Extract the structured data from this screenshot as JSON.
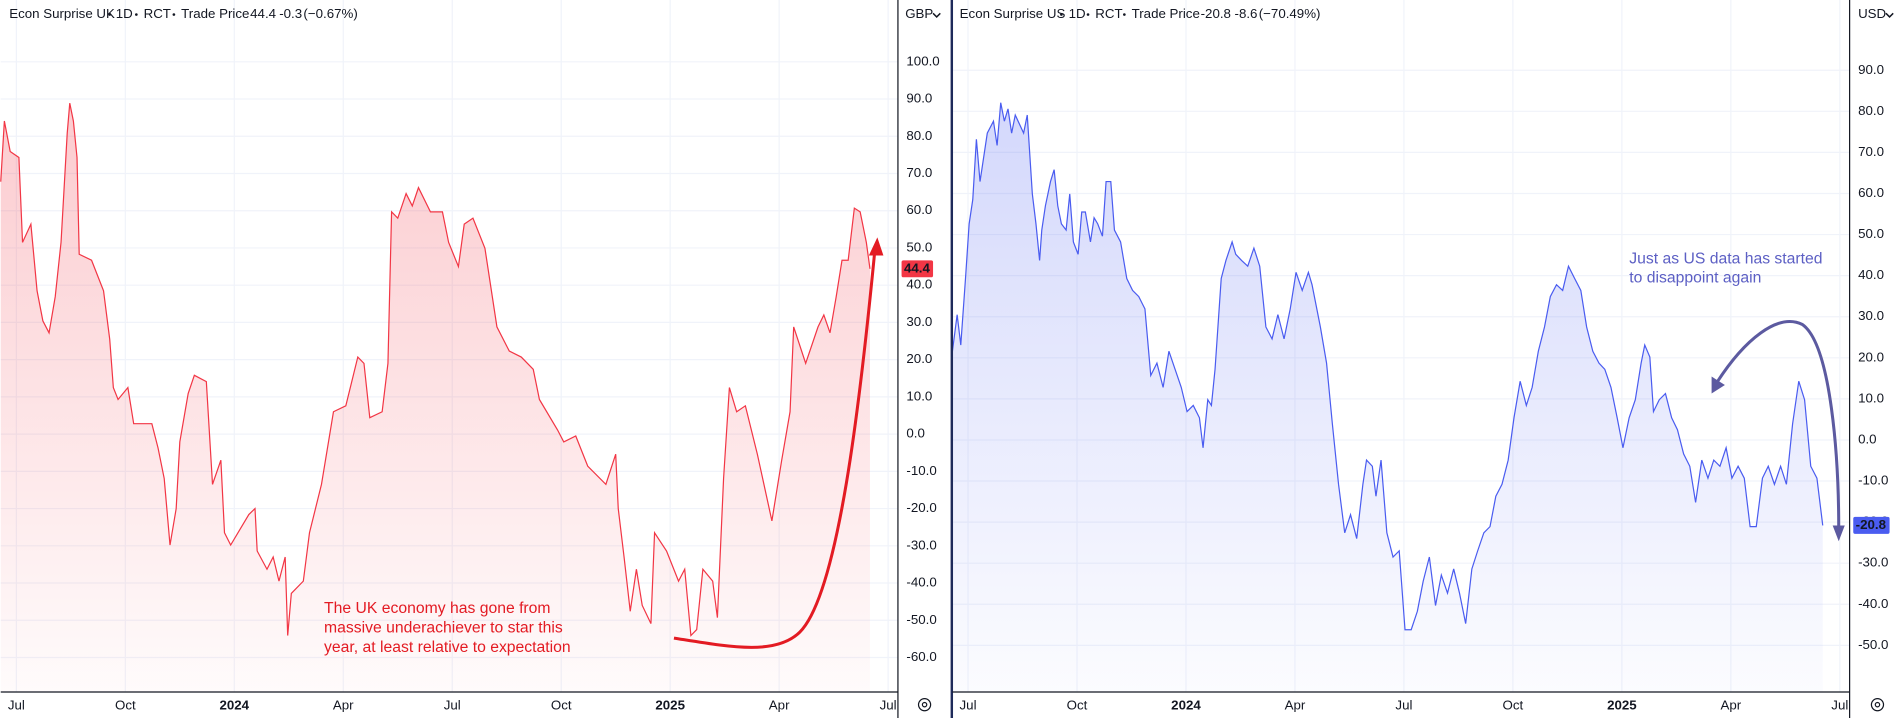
{
  "chart_data": [
    {
      "type": "area",
      "title": "Econ Surprise UK",
      "interval": "1D",
      "source": "RCT",
      "field": "Trade Price",
      "last": 44.4,
      "change": -0.3,
      "change_pct": {
        "value": -0.67,
        "label": "(−0.67%)"
      },
      "currency": "GBP",
      "color": "#f23645",
      "grid": true,
      "xlim": [
        -0.43,
        24.27
      ],
      "ylim": [
        -69.1,
        116.6
      ],
      "xticks": [
        {
          "value": 0,
          "label": "Jul"
        },
        {
          "value": 3,
          "label": "Oct"
        },
        {
          "value": 6,
          "label": "2024"
        },
        {
          "value": 9,
          "label": "Apr"
        },
        {
          "value": 12,
          "label": "Jul"
        },
        {
          "value": 15,
          "label": "Oct"
        },
        {
          "value": 18,
          "label": "2025"
        },
        {
          "value": 21,
          "label": "Apr"
        },
        {
          "value": 24,
          "label": "Jul"
        }
      ],
      "yticks": [
        {
          "value": 100,
          "label": "100.0"
        },
        {
          "value": 90,
          "label": "90.0"
        },
        {
          "value": 80,
          "label": "80.0"
        },
        {
          "value": 70,
          "label": "70.0"
        },
        {
          "value": 60,
          "label": "60.0"
        },
        {
          "value": 50,
          "label": "50.0"
        },
        {
          "value": 40,
          "label": "40.0"
        },
        {
          "value": 30,
          "label": "30.0"
        },
        {
          "value": 20,
          "label": "20.0"
        },
        {
          "value": 10,
          "label": "10.0"
        },
        {
          "value": 0,
          "label": "0.0"
        },
        {
          "value": -10,
          "label": "-10.0"
        },
        {
          "value": -20,
          "label": "-20.0"
        },
        {
          "value": -30,
          "label": "-30.0"
        },
        {
          "value": -40,
          "label": "-40.0"
        },
        {
          "value": -50,
          "label": "-50.0"
        },
        {
          "value": -60,
          "label": "-60.0"
        }
      ],
      "annotation": [
        "The UK economy has gone from",
        "massive underachiever to star this",
        "year, at least relative to expectation"
      ],
      "x": [
        -0.43,
        -0.33,
        -0.17,
        0.07,
        0.17,
        0.4,
        0.57,
        0.73,
        0.9,
        1.07,
        1.23,
        1.4,
        1.47,
        1.57,
        1.67,
        1.73,
        2.07,
        2.4,
        2.57,
        2.67,
        2.8,
        3.07,
        3.23,
        3.73,
        3.9,
        4.07,
        4.23,
        4.4,
        4.5,
        4.73,
        4.9,
        5.23,
        5.4,
        5.63,
        5.73,
        5.9,
        6.4,
        6.57,
        6.63,
        6.9,
        7.07,
        7.23,
        7.4,
        7.47,
        7.57,
        7.9,
        8.07,
        8.4,
        8.73,
        9.07,
        9.4,
        9.57,
        9.73,
        10.07,
        10.23,
        10.33,
        10.5,
        10.73,
        10.9,
        11.07,
        11.4,
        11.73,
        11.9,
        12.17,
        12.33,
        12.57,
        12.9,
        13.23,
        13.57,
        13.9,
        14.23,
        14.4,
        14.9,
        15.07,
        15.4,
        15.73,
        16.23,
        16.5,
        16.57,
        16.73,
        16.9,
        17.07,
        17.23,
        17.47,
        17.57,
        17.9,
        18.23,
        18.4,
        18.57,
        18.73,
        18.9,
        19.17,
        19.3,
        19.47,
        19.63,
        19.83,
        20.07,
        20.4,
        20.8,
        21.07,
        21.3,
        21.4,
        21.73,
        22.07,
        22.23,
        22.4,
        22.57,
        22.73,
        22.9,
        23.07,
        23.23,
        23.4,
        23.5
      ],
      "values": [
        67.8,
        84.1,
        75.9,
        74.3,
        51.5,
        56.4,
        38.5,
        30.4,
        27.2,
        36.9,
        51.5,
        80.8,
        88.9,
        84.1,
        74.3,
        48.3,
        46.7,
        38.5,
        25.5,
        12.5,
        9.3,
        12.5,
        2.8,
        2.8,
        -3.7,
        -11.9,
        -29.8,
        -20.0,
        -2.1,
        10.9,
        15.8,
        14.1,
        -13.5,
        -7.0,
        -26.5,
        -29.8,
        -21.6,
        -20.0,
        -31.4,
        -36.3,
        -33.0,
        -39.5,
        -33.0,
        -54.1,
        -42.8,
        -39.5,
        -26.5,
        -13.5,
        6.0,
        7.6,
        20.7,
        19.0,
        4.4,
        6.0,
        19.0,
        59.7,
        58.0,
        64.6,
        61.3,
        66.2,
        59.7,
        59.7,
        51.5,
        45.0,
        56.4,
        58.0,
        49.9,
        28.8,
        22.3,
        20.7,
        17.4,
        9.3,
        1.1,
        -2.1,
        -0.5,
        -8.6,
        -13.5,
        -5.4,
        -20.0,
        -33.0,
        -47.6,
        -36.3,
        -46.0,
        -50.9,
        -26.5,
        -31.4,
        -39.5,
        -36.3,
        -54.1,
        -52.5,
        -36.3,
        -39.5,
        -49.3,
        -11.9,
        12.5,
        6.0,
        7.6,
        -5.4,
        -23.3,
        -7.0,
        6.0,
        28.8,
        19.0,
        28.8,
        32.0,
        27.2,
        36.9,
        46.7,
        46.7,
        60.7,
        59.7,
        51.5,
        44.4
      ]
    },
    {
      "type": "area",
      "title": "Econ Surprise US",
      "interval": "1D",
      "source": "RCT",
      "field": "Trade Price",
      "last": -20.8,
      "change": -8.6,
      "change_pct": {
        "value": -70.49,
        "label": "(−70.49%)"
      },
      "currency": "USD",
      "color": "#4a5cf0",
      "grid": true,
      "xlim": [
        -0.43,
        24.27
      ],
      "ylim": [
        -61.2,
        107.1
      ],
      "xticks": [
        {
          "value": 0,
          "label": "Jul"
        },
        {
          "value": 3,
          "label": "Oct"
        },
        {
          "value": 6,
          "label": "2024"
        },
        {
          "value": 9,
          "label": "Apr"
        },
        {
          "value": 12,
          "label": "Jul"
        },
        {
          "value": 15,
          "label": "Oct"
        },
        {
          "value": 18,
          "label": "2025"
        },
        {
          "value": 21,
          "label": "Apr"
        },
        {
          "value": 24,
          "label": "Jul"
        }
      ],
      "yticks": [
        {
          "value": 90,
          "label": "90.0"
        },
        {
          "value": 80,
          "label": "80.0"
        },
        {
          "value": 70,
          "label": "70.0"
        },
        {
          "value": 60,
          "label": "60.0"
        },
        {
          "value": 50,
          "label": "50.0"
        },
        {
          "value": 40,
          "label": "40.0"
        },
        {
          "value": 30,
          "label": "30.0"
        },
        {
          "value": 20,
          "label": "20.0"
        },
        {
          "value": 10,
          "label": "10.0"
        },
        {
          "value": 0,
          "label": "0.0"
        },
        {
          "value": -10,
          "label": "-10.0"
        },
        {
          "value": -20,
          "label": "-20.0"
        },
        {
          "value": -30,
          "label": "-30.0"
        },
        {
          "value": -40,
          "label": "-40.0"
        },
        {
          "value": -50,
          "label": "-50.0"
        }
      ],
      "annotation": [
        "Just as US data has started",
        "to disappoint again"
      ],
      "x": [
        -0.43,
        -0.3,
        -0.2,
        -0.07,
        0.03,
        0.13,
        0.23,
        0.33,
        0.43,
        0.53,
        0.7,
        0.8,
        0.9,
        1.0,
        1.1,
        1.2,
        1.3,
        1.53,
        1.63,
        1.77,
        1.87,
        1.97,
        2.03,
        2.13,
        2.27,
        2.37,
        2.47,
        2.57,
        2.7,
        2.8,
        2.9,
        3.03,
        3.13,
        3.23,
        3.37,
        3.47,
        3.57,
        3.7,
        3.8,
        3.93,
        4.03,
        4.2,
        4.37,
        4.53,
        4.7,
        4.87,
        5.03,
        5.2,
        5.37,
        5.53,
        5.7,
        5.87,
        6.03,
        6.2,
        6.37,
        6.47,
        6.6,
        6.7,
        6.8,
        6.97,
        7.1,
        7.27,
        7.37,
        7.53,
        7.7,
        7.87,
        8.03,
        8.2,
        8.37,
        8.53,
        8.7,
        8.87,
        9.03,
        9.2,
        9.37,
        9.47,
        9.7,
        9.87,
        10.03,
        10.2,
        10.37,
        10.53,
        10.7,
        10.87,
        10.97,
        11.13,
        11.23,
        11.37,
        11.53,
        11.7,
        11.87,
        12.03,
        12.2,
        12.37,
        12.53,
        12.7,
        12.87,
        13.03,
        13.2,
        13.37,
        13.53,
        13.7,
        13.87,
        14.03,
        14.2,
        14.37,
        14.53,
        14.7,
        14.87,
        15.03,
        15.2,
        15.37,
        15.53,
        15.7,
        15.87,
        16.03,
        16.2,
        16.37,
        16.53,
        16.7,
        16.87,
        17.03,
        17.2,
        17.37,
        17.53,
        17.7,
        17.87,
        18.03,
        18.2,
        18.37,
        18.53,
        18.63,
        18.77,
        18.87,
        19.03,
        19.2,
        19.37,
        19.53,
        19.7,
        19.87,
        20.03,
        20.2,
        20.37,
        20.53,
        20.7,
        20.87,
        21.03,
        21.2,
        21.37,
        21.53,
        21.7,
        21.87,
        22.03,
        22.2,
        22.37,
        22.53,
        22.7,
        22.87,
        23.03,
        23.2,
        23.37,
        23.53
      ],
      "values": [
        21.6,
        30.5,
        23.1,
        39.3,
        52.6,
        58.5,
        73.2,
        62.9,
        68.8,
        74.7,
        77.6,
        71.7,
        82.1,
        77.6,
        80.6,
        74.7,
        79.1,
        74.7,
        79.1,
        59.9,
        52.6,
        43.7,
        51.1,
        57.0,
        62.9,
        65.8,
        57.0,
        52.6,
        51.1,
        59.9,
        48.2,
        45.2,
        55.5,
        55.5,
        48.2,
        54.1,
        52.6,
        49.6,
        62.9,
        62.9,
        51.1,
        48.2,
        39.3,
        36.4,
        34.9,
        31.9,
        15.7,
        18.7,
        12.8,
        21.6,
        17.2,
        12.8,
        6.9,
        8.4,
        5.4,
        -1.9,
        9.8,
        8.4,
        17.2,
        39.3,
        43.7,
        48.2,
        45.2,
        43.7,
        42.3,
        46.7,
        42.3,
        27.5,
        24.6,
        30.5,
        24.6,
        31.9,
        40.8,
        36.4,
        40.8,
        37.8,
        27.5,
        18.7,
        3.9,
        -10.8,
        -22.6,
        -18.2,
        -24.0,
        -10.8,
        -4.9,
        -6.4,
        -13.7,
        -4.9,
        -22.6,
        -28.5,
        -27.0,
        -46.2,
        -46.2,
        -41.7,
        -34.4,
        -28.5,
        -40.3,
        -32.9,
        -37.3,
        -31.4,
        -37.3,
        -44.7,
        -31.4,
        -27.0,
        -22.6,
        -21.1,
        -13.7,
        -10.8,
        -4.9,
        5.4,
        14.3,
        8.4,
        12.8,
        21.6,
        27.5,
        34.9,
        37.8,
        36.4,
        42.3,
        39.3,
        36.4,
        27.5,
        21.6,
        18.7,
        17.2,
        12.8,
        5.4,
        -1.9,
        5.4,
        9.8,
        18.7,
        23.1,
        20.2,
        6.9,
        9.8,
        11.3,
        5.4,
        2.5,
        -3.4,
        -6.4,
        -15.2,
        -4.9,
        -9.3,
        -4.9,
        -6.4,
        -1.9,
        -9.3,
        -6.4,
        -9.3,
        -21.1,
        -21.1,
        -9.3,
        -6.4,
        -10.8,
        -6.4,
        -10.8,
        3.9,
        14.3,
        9.8,
        -6.4,
        -9.3,
        -20.8
      ]
    }
  ]
}
